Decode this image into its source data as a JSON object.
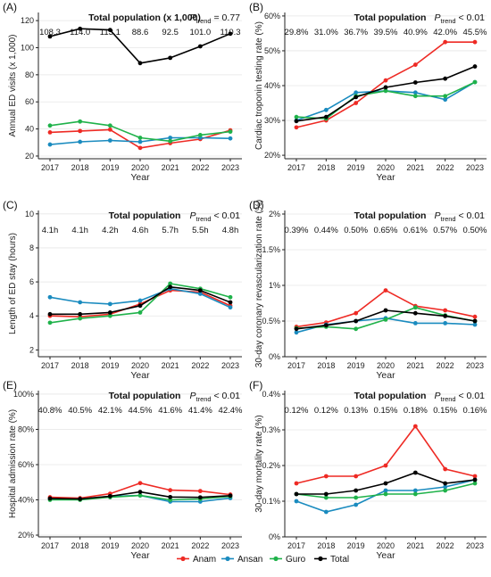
{
  "legend": {
    "items": [
      {
        "name": "Anam",
        "color": "#ee2a24"
      },
      {
        "name": "Ansan",
        "color": "#1a8bbf"
      },
      {
        "name": "Guro",
        "color": "#1fb24a"
      },
      {
        "name": "Total",
        "color": "#000000"
      }
    ]
  },
  "chart_data": [
    {
      "panel": "(A)",
      "type": "line",
      "title": "Total population (x 1,000)",
      "p_trend": {
        "label": "P",
        "sub": "trend",
        "value": "= 0.77"
      },
      "xlabel": "Year",
      "ylabel": "Annual ED visits (x 1,000)",
      "x": [
        "2017",
        "2018",
        "2019",
        "2020",
        "2021",
        "2022",
        "2023"
      ],
      "ylim": [
        18,
        126
      ],
      "yticks": [
        20,
        40,
        60,
        80,
        100,
        120
      ],
      "ytick_labels": [
        "20",
        "40",
        "60",
        "80",
        "100",
        "120"
      ],
      "annotations": [
        "108.3",
        "114.0",
        "113.1",
        "88.6",
        "92.5",
        "101.0",
        "110.3"
      ],
      "series": [
        {
          "name": "Anam",
          "values": [
            37.5,
            38.5,
            39.5,
            26,
            29.5,
            32.5,
            39
          ]
        },
        {
          "name": "Ansan",
          "values": [
            28.5,
            30.5,
            31.5,
            30.5,
            33.5,
            33.5,
            33
          ]
        },
        {
          "name": "Guro",
          "values": [
            42.5,
            45.5,
            42.5,
            33.5,
            31,
            35.5,
            38
          ]
        },
        {
          "name": "Total",
          "values": [
            108.3,
            114.0,
            113.1,
            88.6,
            92.5,
            101.0,
            110.3
          ]
        }
      ]
    },
    {
      "panel": "(B)",
      "type": "line",
      "title": "Total population",
      "p_trend": {
        "label": "P",
        "sub": "trend",
        "value": "< 0.01"
      },
      "xlabel": "Year",
      "ylabel": "Cardiac troponin testing rate (%)",
      "x": [
        "2017",
        "2018",
        "2019",
        "2020",
        "2021",
        "2022",
        "2023"
      ],
      "ylim": [
        19,
        61
      ],
      "yticks": [
        20,
        30,
        40,
        50,
        60
      ],
      "ytick_labels": [
        "20%",
        "30%",
        "40%",
        "50%",
        "60%"
      ],
      "annotations": [
        "29.8%",
        "31.0%",
        "36.7%",
        "39.5%",
        "40.9%",
        "42.0%",
        "45.5%"
      ],
      "series": [
        {
          "name": "Anam",
          "values": [
            28.0,
            30.0,
            35.0,
            41.5,
            46.0,
            52.5,
            52.5
          ]
        },
        {
          "name": "Ansan",
          "values": [
            30.0,
            33.0,
            38.0,
            38.5,
            38.0,
            36.0,
            41.0
          ]
        },
        {
          "name": "Guro",
          "values": [
            31.0,
            30.5,
            37.0,
            38.5,
            37.0,
            37.0,
            41.0
          ]
        },
        {
          "name": "Total",
          "values": [
            29.8,
            31.0,
            36.7,
            39.5,
            40.9,
            42.0,
            45.5
          ]
        }
      ]
    },
    {
      "panel": "(C)",
      "type": "line",
      "title": "Total population",
      "p_trend": {
        "label": "P",
        "sub": "trend",
        "value": "< 0.01"
      },
      "xlabel": "Year",
      "ylabel": "Length of ED stay (hours)",
      "x": [
        "2017",
        "2018",
        "2019",
        "2020",
        "2021",
        "2022",
        "2023"
      ],
      "ylim": [
        1.6,
        10.2
      ],
      "yticks": [
        2,
        4,
        6,
        8,
        10
      ],
      "ytick_labels": [
        "2",
        "4",
        "6",
        "8",
        "10"
      ],
      "annotations": [
        "4.1h",
        "4.1h",
        "4.2h",
        "4.6h",
        "5.7h",
        "5.5h",
        "4.8h"
      ],
      "series": [
        {
          "name": "Anam",
          "values": [
            4.0,
            3.95,
            4.1,
            4.7,
            5.5,
            5.4,
            4.6
          ]
        },
        {
          "name": "Ansan",
          "values": [
            5.1,
            4.8,
            4.7,
            4.9,
            5.6,
            5.3,
            4.5
          ]
        },
        {
          "name": "Guro",
          "values": [
            3.6,
            3.85,
            4.0,
            4.2,
            5.9,
            5.6,
            5.1
          ]
        },
        {
          "name": "Total",
          "values": [
            4.1,
            4.1,
            4.2,
            4.6,
            5.7,
            5.5,
            4.8
          ]
        }
      ]
    },
    {
      "panel": "(D)",
      "type": "line",
      "title": "Total population",
      "p_trend": {
        "label": "P",
        "sub": "trend",
        "value": "< 0.01"
      },
      "xlabel": "Year",
      "ylabel": "30-day coronary revascularization rate (%)",
      "x": [
        "2017",
        "2018",
        "2019",
        "2020",
        "2021",
        "2022",
        "2023"
      ],
      "ylim": [
        0,
        2.05
      ],
      "yticks": [
        0,
        0.5,
        1,
        1.5,
        2
      ],
      "ytick_labels": [
        "0%",
        "0.5%",
        "1%",
        "1.5%",
        "2%"
      ],
      "annotations": [
        "0.39%",
        "0.44%",
        "0.50%",
        "0.65%",
        "0.61%",
        "0.57%",
        "0.50%"
      ],
      "series": [
        {
          "name": "Anam",
          "values": [
            0.42,
            0.48,
            0.61,
            0.93,
            0.71,
            0.65,
            0.56
          ]
        },
        {
          "name": "Ansan",
          "values": [
            0.34,
            0.45,
            0.5,
            0.54,
            0.47,
            0.47,
            0.45
          ]
        },
        {
          "name": "Guro",
          "values": [
            0.4,
            0.42,
            0.39,
            0.52,
            0.69,
            0.58,
            0.5
          ]
        },
        {
          "name": "Total",
          "values": [
            0.39,
            0.44,
            0.5,
            0.65,
            0.61,
            0.57,
            0.5
          ]
        }
      ]
    },
    {
      "panel": "(E)",
      "type": "line",
      "title": "Total population",
      "p_trend": {
        "label": "P",
        "sub": "trend",
        "value": "< 0.01"
      },
      "xlabel": "Year",
      "ylabel": "Hospital admission rate (%)",
      "x": [
        "2017",
        "2018",
        "2019",
        "2020",
        "2021",
        "2022",
        "2023"
      ],
      "ylim": [
        19,
        102
      ],
      "yticks": [
        20,
        40,
        60,
        80,
        100
      ],
      "ytick_labels": [
        "20%",
        "40%",
        "60%",
        "80%",
        "100%"
      ],
      "annotations": [
        "40.8%",
        "40.5%",
        "42.1%",
        "44.5%",
        "41.6%",
        "41.4%",
        "42.4%"
      ],
      "series": [
        {
          "name": "Anam",
          "values": [
            41.5,
            41.0,
            43.5,
            49.5,
            45.5,
            45.0,
            43.0
          ]
        },
        {
          "name": "Ansan",
          "values": [
            40.5,
            40.5,
            42.0,
            42.5,
            39.0,
            39.0,
            41.0
          ]
        },
        {
          "name": "Guro",
          "values": [
            40.0,
            40.0,
            41.5,
            42.5,
            40.0,
            40.5,
            42.0
          ]
        },
        {
          "name": "Total",
          "values": [
            40.8,
            40.5,
            42.1,
            44.5,
            41.6,
            41.4,
            42.4
          ]
        }
      ]
    },
    {
      "panel": "(F)",
      "type": "line",
      "title": "Total population",
      "p_trend": {
        "label": "P",
        "sub": "trend",
        "value": "< 0.01"
      },
      "xlabel": "Year",
      "ylabel": "30-day mortality rate (%)",
      "x": [
        "2017",
        "2018",
        "2019",
        "2020",
        "2021",
        "2022",
        "2023"
      ],
      "ylim": [
        0,
        0.41
      ],
      "yticks": [
        0,
        0.1,
        0.2,
        0.3,
        0.4
      ],
      "ytick_labels": [
        "0%",
        "0.1%",
        "0.2%",
        "0.3%",
        "0.4%"
      ],
      "annotations": [
        "0.12%",
        "0.12%",
        "0.13%",
        "0.15%",
        "0.18%",
        "0.15%",
        "0.16%"
      ],
      "series": [
        {
          "name": "Anam",
          "values": [
            0.15,
            0.17,
            0.17,
            0.2,
            0.31,
            0.19,
            0.17
          ]
        },
        {
          "name": "Ansan",
          "values": [
            0.1,
            0.07,
            0.09,
            0.13,
            0.13,
            0.14,
            0.16
          ]
        },
        {
          "name": "Guro",
          "values": [
            0.12,
            0.11,
            0.11,
            0.12,
            0.12,
            0.13,
            0.15
          ]
        },
        {
          "name": "Total",
          "values": [
            0.12,
            0.12,
            0.13,
            0.15,
            0.18,
            0.15,
            0.16
          ]
        }
      ]
    }
  ]
}
